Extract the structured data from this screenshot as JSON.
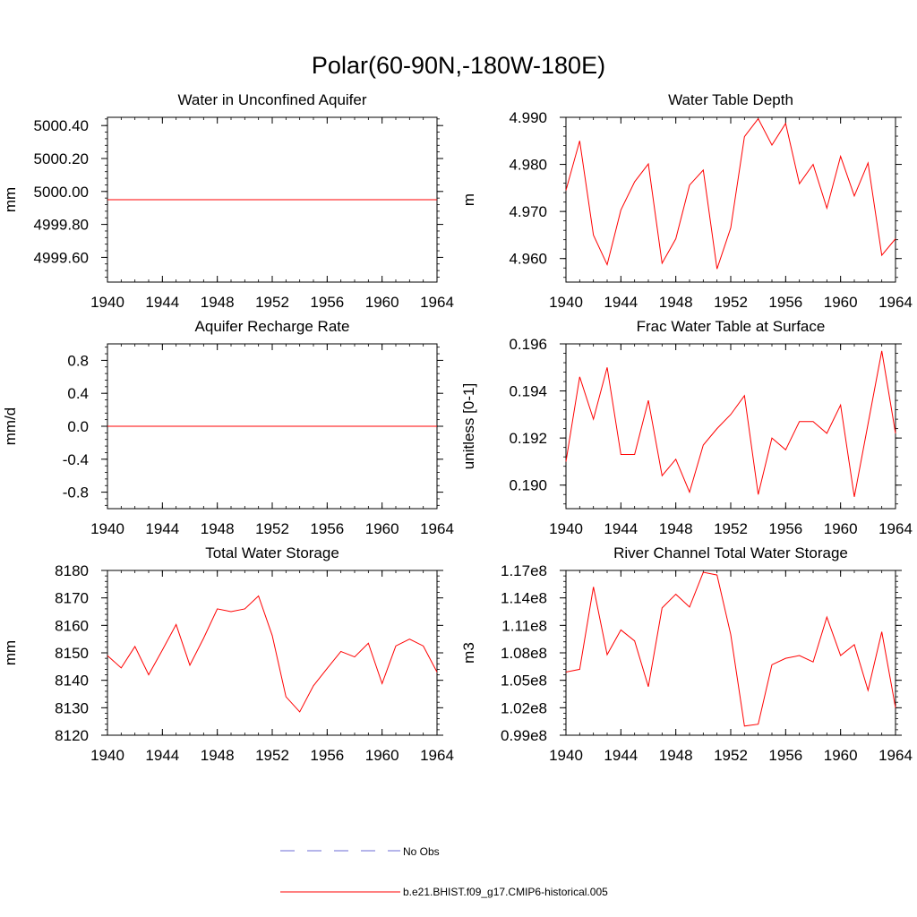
{
  "title": "Polar(60-90N,-180W-180E)",
  "legend": {
    "items": [
      {
        "label": "No Obs",
        "style": "dashed",
        "color": "#6b6bd6"
      },
      {
        "label": "b.e21.BHIST.f09_g17.CMIP6-historical.005",
        "style": "solid",
        "color": "#ff0000"
      }
    ]
  },
  "colors": {
    "model": "#ff0000",
    "obs": "#6b6bd6",
    "axis": "#000000"
  },
  "chart_data": [
    {
      "type": "line",
      "title": "Water in Unconfined Aquifer",
      "ylabel": "mm",
      "xlim": [
        1940,
        1964
      ],
      "ylim": [
        4999.45,
        5000.45
      ],
      "xticks": [
        1940,
        1944,
        1948,
        1952,
        1956,
        1960,
        1964
      ],
      "yticks": [
        4999.6,
        4999.8,
        5000.0,
        5000.2,
        5000.4
      ],
      "yticklabels": [
        "4999.60",
        "4999.80",
        "5000.00",
        "5000.20",
        "5000.40"
      ],
      "x": [
        1940,
        1941,
        1942,
        1943,
        1944,
        1945,
        1946,
        1947,
        1948,
        1949,
        1950,
        1951,
        1952,
        1953,
        1954,
        1955,
        1956,
        1957,
        1958,
        1959,
        1960,
        1961,
        1962,
        1963,
        1964
      ],
      "series": [
        {
          "name": "b.e21.BHIST.f09_g17.CMIP6-historical.005",
          "values": [
            4999.95,
            4999.95,
            4999.95,
            4999.95,
            4999.95,
            4999.95,
            4999.95,
            4999.95,
            4999.95,
            4999.95,
            4999.95,
            4999.95,
            4999.95,
            4999.95,
            4999.95,
            4999.95,
            4999.95,
            4999.95,
            4999.95,
            4999.95,
            4999.95,
            4999.95,
            4999.95,
            4999.95,
            4999.95
          ]
        }
      ]
    },
    {
      "type": "line",
      "title": "Water Table Depth",
      "ylabel": "m",
      "xlim": [
        1940,
        1964
      ],
      "ylim": [
        4.955,
        4.99
      ],
      "xticks": [
        1940,
        1944,
        1948,
        1952,
        1956,
        1960,
        1964
      ],
      "yticks": [
        4.96,
        4.97,
        4.98,
        4.99
      ],
      "yticklabels": [
        "4.960",
        "4.970",
        "4.980",
        "4.990"
      ],
      "x": [
        1940,
        1941,
        1942,
        1943,
        1944,
        1945,
        1946,
        1947,
        1948,
        1949,
        1950,
        1951,
        1952,
        1953,
        1954,
        1955,
        1956,
        1957,
        1958,
        1959,
        1960,
        1961,
        1962,
        1963,
        1964
      ],
      "series": [
        {
          "name": "b.e21.BHIST.f09_g17.CMIP6-historical.005",
          "values": [
            4.9745,
            4.985,
            4.965,
            4.9587,
            4.9703,
            4.9763,
            4.9801,
            4.959,
            4.9642,
            4.9756,
            4.9788,
            4.9578,
            4.9665,
            4.9859,
            4.9897,
            4.9841,
            4.9887,
            4.9759,
            4.98,
            4.9707,
            4.9817,
            4.9733,
            4.9803,
            4.9607,
            4.9642
          ]
        }
      ]
    },
    {
      "type": "line",
      "title": "Aquifer Recharge Rate",
      "ylabel": "mm/d",
      "xlim": [
        1940,
        1964
      ],
      "ylim": [
        -1.0,
        1.0
      ],
      "xticks": [
        1940,
        1944,
        1948,
        1952,
        1956,
        1960,
        1964
      ],
      "yticks": [
        -0.8,
        -0.4,
        0.0,
        0.4,
        0.8
      ],
      "yticklabels": [
        "-0.8",
        "-0.4",
        "0.0",
        "0.4",
        "0.8"
      ],
      "x": [
        1940,
        1941,
        1942,
        1943,
        1944,
        1945,
        1946,
        1947,
        1948,
        1949,
        1950,
        1951,
        1952,
        1953,
        1954,
        1955,
        1956,
        1957,
        1958,
        1959,
        1960,
        1961,
        1962,
        1963,
        1964
      ],
      "series": [
        {
          "name": "b.e21.BHIST.f09_g17.CMIP6-historical.005",
          "values": [
            0,
            0,
            0,
            0,
            0,
            0,
            0,
            0,
            0,
            0,
            0,
            0,
            0,
            0,
            0,
            0,
            0,
            0,
            0,
            0,
            0,
            0,
            0,
            0,
            0
          ]
        }
      ]
    },
    {
      "type": "line",
      "title": "Frac Water Table at Surface",
      "ylabel": "unitless [0-1]",
      "xlim": [
        1940,
        1964
      ],
      "ylim": [
        0.189,
        0.196
      ],
      "xticks": [
        1940,
        1944,
        1948,
        1952,
        1956,
        1960,
        1964
      ],
      "yticks": [
        0.19,
        0.192,
        0.194,
        0.196
      ],
      "yticklabels": [
        "0.190",
        "0.192",
        "0.194",
        "0.196"
      ],
      "x": [
        1940,
        1941,
        1942,
        1943,
        1944,
        1945,
        1946,
        1947,
        1948,
        1949,
        1950,
        1951,
        1952,
        1953,
        1954,
        1955,
        1956,
        1957,
        1958,
        1959,
        1960,
        1961,
        1962,
        1963,
        1964
      ],
      "series": [
        {
          "name": "b.e21.BHIST.f09_g17.CMIP6-historical.005",
          "values": [
            0.191,
            0.1946,
            0.1928,
            0.195,
            0.1913,
            0.1913,
            0.1936,
            0.1904,
            0.1911,
            0.1897,
            0.1917,
            0.1924,
            0.193,
            0.1938,
            0.1896,
            0.192,
            0.1915,
            0.1927,
            0.1927,
            0.1922,
            0.1934,
            0.1895,
            0.1926,
            0.1957,
            0.1922
          ]
        }
      ]
    },
    {
      "type": "line",
      "title": "Total Water Storage",
      "ylabel": "mm",
      "xlim": [
        1940,
        1964
      ],
      "ylim": [
        8120,
        8180
      ],
      "xticks": [
        1940,
        1944,
        1948,
        1952,
        1956,
        1960,
        1964
      ],
      "yticks": [
        8120,
        8130,
        8140,
        8150,
        8160,
        8170,
        8180
      ],
      "yticklabels": [
        "8120",
        "8130",
        "8140",
        "8150",
        "8160",
        "8170",
        "8180"
      ],
      "x": [
        1940,
        1941,
        1942,
        1943,
        1944,
        1945,
        1946,
        1947,
        1948,
        1949,
        1950,
        1951,
        1952,
        1953,
        1954,
        1955,
        1956,
        1957,
        1958,
        1959,
        1960,
        1961,
        1962,
        1963,
        1964
      ],
      "series": [
        {
          "name": "b.e21.BHIST.f09_g17.CMIP6-historical.005",
          "values": [
            8149,
            8144.5,
            8152.3,
            8142,
            8151,
            8160.3,
            8145.5,
            8155.3,
            8166,
            8165,
            8166,
            8170.7,
            8156.3,
            8134,
            8128.5,
            8138,
            8144.3,
            8150.5,
            8148.5,
            8153.5,
            8138.8,
            8152.5,
            8155,
            8152.5,
            8143
          ]
        }
      ]
    },
    {
      "type": "line",
      "title": "River Channel Total Water Storage",
      "ylabel": "m3",
      "xlim": [
        1940,
        1964
      ],
      "ylim": [
        99000000.0,
        117000000.0
      ],
      "xticks": [
        1940,
        1944,
        1948,
        1952,
        1956,
        1960,
        1964
      ],
      "yticks": [
        99000000.0,
        102000000.0,
        105000000.0,
        108000000.0,
        111000000.0,
        114000000.0,
        117000000.0
      ],
      "yticklabels": [
        "0.99e8",
        "1.02e8",
        "1.05e8",
        "1.08e8",
        "1.11e8",
        "1.14e8",
        "1.17e8"
      ],
      "x": [
        1940,
        1941,
        1942,
        1943,
        1944,
        1945,
        1946,
        1947,
        1948,
        1949,
        1950,
        1951,
        1952,
        1953,
        1954,
        1955,
        1956,
        1957,
        1958,
        1959,
        1960,
        1961,
        1962,
        1963,
        1964
      ],
      "series": [
        {
          "name": "b.e21.BHIST.f09_g17.CMIP6-historical.005",
          "values": [
            105900000.0,
            106200000.0,
            115200000.0,
            107800000.0,
            110500000.0,
            109300000.0,
            104300000.0,
            112900000.0,
            114400000.0,
            113000000.0,
            116800000.0,
            116500000.0,
            110000000.0,
            100000000.0,
            100200000.0,
            106700000.0,
            107400000.0,
            107700000.0,
            107000000.0,
            111900000.0,
            107700000.0,
            108900000.0,
            103900000.0,
            110300000.0,
            102000000.0
          ]
        }
      ]
    }
  ]
}
